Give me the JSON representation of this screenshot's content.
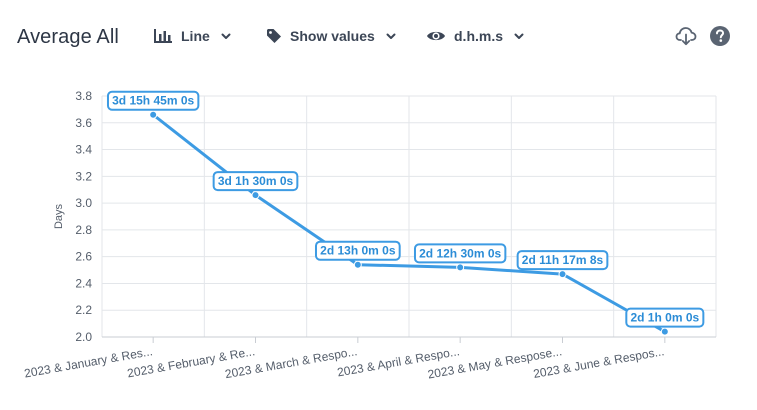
{
  "header": {
    "title": "Average All",
    "type_label": "Line",
    "values_label": "Show values",
    "format_label": "d.h.m.s"
  },
  "icons": {
    "type": "bar-chart-icon",
    "values": "tag-icon",
    "format": "eye-icon",
    "download": "cloud-download-icon",
    "help": "help-circle-icon"
  },
  "colors": {
    "line": "#3d9be3",
    "label_text": "#2b8cd6",
    "grid": "#e3e6ea"
  },
  "chart_data": {
    "type": "line",
    "categories": [
      "2023 & January & Res...",
      "2023 & February & Re...",
      "2023 & March & Respo...",
      "2023 & April & Respo...",
      "2023 & May & Respose...",
      "2023 & June & Respos..."
    ],
    "values": [
      3.66,
      3.06,
      2.54,
      2.52,
      2.47,
      2.04
    ],
    "data_labels": [
      "3d 15h 45m 0s",
      "3d 1h 30m 0s",
      "2d 13h 0m 0s",
      "2d 12h 30m 0s",
      "2d 11h 17m 8s",
      "2d 1h 0m 0s"
    ],
    "ylabel": "Days",
    "xlabel": "",
    "ylim": [
      2.0,
      3.8
    ],
    "yticks": [
      "2.0",
      "2.2",
      "2.4",
      "2.6",
      "2.8",
      "3.0",
      "3.2",
      "3.4",
      "3.6",
      "3.8"
    ],
    "grid": true,
    "legend": "none"
  }
}
